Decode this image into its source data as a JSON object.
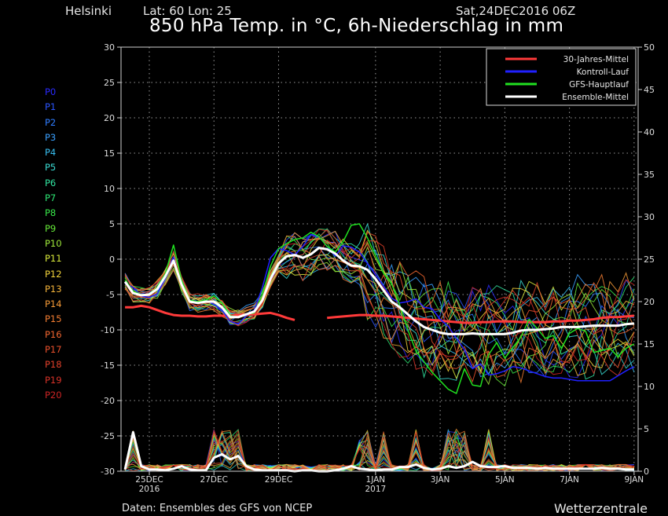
{
  "header": {
    "location": "Helsinki",
    "coords": "Lat: 60 Lon: 25",
    "run": "Sat,24DEC2016 06Z",
    "title": "850 hPa Temp. in °C, 6h-Niederschlag in mm"
  },
  "footer": {
    "source": "Daten: Ensembles des GFS von NCEP",
    "brand": "Wetterzentrale"
  },
  "members": [
    {
      "label": "P0",
      "color": "#2a2aff"
    },
    {
      "label": "P1",
      "color": "#2b55ff"
    },
    {
      "label": "P2",
      "color": "#2f7dff"
    },
    {
      "label": "P3",
      "color": "#3aa0ff"
    },
    {
      "label": "P4",
      "color": "#38c0f2"
    },
    {
      "label": "P5",
      "color": "#3adcd4"
    },
    {
      "label": "P6",
      "color": "#32e6a2"
    },
    {
      "label": "P7",
      "color": "#2ee875"
    },
    {
      "label": "P8",
      "color": "#38e84a"
    },
    {
      "label": "P9",
      "color": "#66e838"
    },
    {
      "label": "P10",
      "color": "#9ee83a"
    },
    {
      "label": "P11",
      "color": "#d8e83a"
    },
    {
      "label": "P12",
      "color": "#f2d43a"
    },
    {
      "label": "P13",
      "color": "#f5b43a"
    },
    {
      "label": "P14",
      "color": "#f59a36"
    },
    {
      "label": "P15",
      "color": "#f57e32"
    },
    {
      "label": "P16",
      "color": "#f0652f"
    },
    {
      "label": "P17",
      "color": "#e8502c"
    },
    {
      "label": "P18",
      "color": "#e0402a"
    },
    {
      "label": "P19",
      "color": "#d83228"
    },
    {
      "label": "P20",
      "color": "#cc2424"
    }
  ],
  "chart_data": {
    "type": "line",
    "x_start": "2016-12-24 06Z",
    "x_step_hours": 6,
    "x_ticks": [
      {
        "step": 3,
        "label": "25DEC",
        "sub": "2016"
      },
      {
        "step": 11,
        "label": "27DEC",
        "sub": ""
      },
      {
        "step": 19,
        "label": "29DEC",
        "sub": ""
      },
      {
        "step": 31,
        "label": "1JAN",
        "sub": "2017"
      },
      {
        "step": 39,
        "label": "3JAN",
        "sub": ""
      },
      {
        "step": 47,
        "label": "5JAN",
        "sub": ""
      },
      {
        "step": 55,
        "label": "7JAN",
        "sub": ""
      },
      {
        "step": 63,
        "label": "9JAN",
        "sub": ""
      }
    ],
    "y_left": {
      "min": -30,
      "max": 30,
      "ticks": [
        30,
        25,
        20,
        15,
        10,
        5,
        0,
        -5,
        -10,
        -15,
        -20,
        -25,
        -30
      ]
    },
    "y_right": {
      "min": 0,
      "max": 50,
      "ticks": [
        50,
        45,
        40,
        35,
        30,
        25,
        20,
        15,
        10,
        5,
        0
      ]
    },
    "grid": true,
    "legend_position": "top-right",
    "legend": [
      {
        "name": "30-Jahres-Mittel",
        "color": "#ff3a3a"
      },
      {
        "name": "Kontroll-Lauf",
        "color": "#2020ff"
      },
      {
        "name": "GFS-Hauptlauf",
        "color": "#20e020"
      },
      {
        "name": "Ensemble-Mittel",
        "color": "#ffffff"
      }
    ],
    "series": [
      {
        "name": "30-Jahres-Mittel",
        "axis": "left",
        "color": "#ff3a3a",
        "width": 3,
        "values": [
          -6.8,
          -6.8,
          -6.6,
          -6.8,
          -7.2,
          -7.6,
          -7.9,
          -8.0,
          -8.0,
          -8.1,
          -8.1,
          -8.0,
          -8.0,
          -8.0,
          -7.9,
          -7.8,
          -7.8,
          -7.7,
          -7.6,
          -7.9,
          -8.3,
          -8.6,
          null,
          null,
          null,
          -8.3,
          -8.2,
          -8.1,
          -8.0,
          -7.9,
          -7.9,
          -8.0,
          -8.0,
          -8.1,
          -8.2,
          -8.3,
          -8.4,
          -8.5,
          -8.6,
          -8.7,
          -8.8,
          -8.9,
          -9.0,
          -9.0,
          -8.9,
          -8.9,
          -8.8,
          -8.8,
          -8.8,
          -8.9,
          -8.9,
          -8.9,
          -8.9,
          -8.8,
          -8.8,
          -8.7,
          -8.7,
          -8.6,
          -8.5,
          -8.3,
          -8.2,
          -8.2,
          -8.1,
          -8.0
        ]
      },
      {
        "name": "Kontroll-Lauf",
        "axis": "left",
        "color": "#2020ff",
        "width": 1.5,
        "values": [
          -3.5,
          -4.0,
          -5.2,
          -5.4,
          -4.9,
          -2.6,
          0.3,
          -3.8,
          -6.0,
          -6.2,
          -5.8,
          -6.4,
          -7.2,
          -8.8,
          -9.2,
          -8.0,
          -7.2,
          -4.0,
          0.2,
          1.5,
          1.2,
          0.6,
          1.8,
          3.5,
          3.2,
          1.8,
          0.4,
          1.9,
          1.7,
          1.0,
          -0.6,
          -2.2,
          -3.8,
          -5.5,
          -6.2,
          -6.0,
          -5.6,
          -6.8,
          -7.0,
          -8.5,
          -9.5,
          -11.2,
          -12.8,
          -15.5,
          -14.8,
          -16.4,
          -16.2,
          -15.8,
          -15.2,
          -15.4,
          -15.8,
          -16.2,
          -16.6,
          -16.8,
          -16.8,
          -17.0,
          -17.2,
          -17.2,
          -17.2,
          -17.2,
          -17.2,
          -16.5,
          -15.8,
          -15.2
        ]
      },
      {
        "name": "GFS-Hauptlauf",
        "axis": "left",
        "color": "#20e020",
        "width": 1.5,
        "values": [
          -3.0,
          -4.5,
          -5.0,
          -5.0,
          -4.0,
          -2.0,
          2.0,
          -3.0,
          -5.8,
          -6.0,
          -5.8,
          -5.2,
          -6.2,
          -8.0,
          -8.2,
          -7.8,
          -7.6,
          -5.0,
          -1.0,
          1.5,
          2.2,
          2.8,
          3.0,
          3.8,
          3.2,
          1.8,
          1.0,
          2.5,
          4.8,
          5.0,
          3.0,
          0.5,
          -2.0,
          -3.5,
          -6.5,
          -10.0,
          -13.0,
          -14.5,
          -16.0,
          -17.2,
          -18.4,
          -19.0,
          -15.5,
          -17.8,
          -18.0,
          -13.5,
          -11.8,
          -14.0,
          -12.5,
          -11.0,
          -8.5,
          -9.8,
          -11.2,
          -10.8,
          -12.6,
          -10.5,
          -9.8,
          -10.2,
          -13.2,
          -12.9,
          -12.6,
          -13.8,
          -12.6,
          -12.0
        ]
      },
      {
        "name": "Ensemble-Mittel",
        "axis": "left",
        "color": "#ffffff",
        "width": 3,
        "values": [
          -3.2,
          -4.8,
          -5.1,
          -5.0,
          -4.2,
          -2.4,
          -0.2,
          -3.6,
          -6.0,
          -6.2,
          -6.0,
          -6.0,
          -6.8,
          -8.2,
          -8.2,
          -7.8,
          -7.4,
          -5.8,
          -2.8,
          -0.6,
          0.4,
          0.6,
          0.2,
          0.7,
          1.6,
          1.4,
          0.8,
          -0.2,
          -0.9,
          -1.0,
          -1.5,
          -2.8,
          -4.4,
          -6.0,
          -6.8,
          -7.8,
          -8.8,
          -9.6,
          -10.0,
          -10.4,
          -10.6,
          -10.6,
          -10.6,
          -10.5,
          -10.6,
          -10.6,
          -10.6,
          -10.6,
          -10.4,
          -10.1,
          -10.0,
          -10.0,
          -9.9,
          -9.8,
          -9.6,
          -9.6,
          -9.6,
          -9.5,
          -9.4,
          -9.4,
          -9.4,
          -9.4,
          -9.2,
          -9.1
        ]
      },
      {
        "name": "Ensemble-Mittel Niederschlag",
        "axis": "right",
        "color": "#ffffff",
        "width": 3,
        "values": [
          0.2,
          4.6,
          0.6,
          0.2,
          0.2,
          0.1,
          0.3,
          0.6,
          0.2,
          0.1,
          0.1,
          1.6,
          2.0,
          1.4,
          1.8,
          0.6,
          0.2,
          0.1,
          0.1,
          0.1,
          0.1,
          0.0,
          0.1,
          0.1,
          0.0,
          0.0,
          0.1,
          0.3,
          0.6,
          0.3,
          0.2,
          0.1,
          0.2,
          0.2,
          0.5,
          0.5,
          0.8,
          0.4,
          0.2,
          0.3,
          0.6,
          0.4,
          0.6,
          1.1,
          0.6,
          0.5,
          0.5,
          0.6,
          0.4,
          0.4,
          0.4,
          0.3,
          0.4,
          0.3,
          0.3,
          0.3,
          0.3,
          0.3,
          0.3,
          0.4,
          0.3,
          0.3,
          0.2,
          0.2
        ]
      }
    ]
  }
}
